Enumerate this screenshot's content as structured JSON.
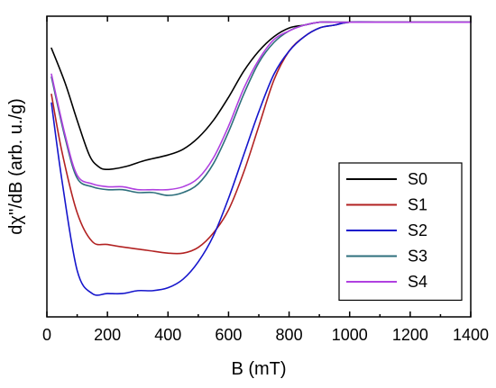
{
  "chart_data": {
    "type": "line",
    "title": "",
    "xlabel": "B (mT)",
    "ylabel": "dχ''/dB (arb. u./g)",
    "xlim": [
      0,
      1400
    ],
    "ylim": [
      0,
      1
    ],
    "xticks": [
      0,
      200,
      400,
      600,
      800,
      1000,
      1200,
      1400
    ],
    "yticks": [],
    "grid": false,
    "legend_position": "bottom-right",
    "series": [
      {
        "name": "S0",
        "color": "#000000",
        "x": [
          15,
          60,
          100,
          140,
          170,
          200,
          260,
          320,
          400,
          450,
          500,
          550,
          600,
          650,
          700,
          750,
          800,
          850,
          900,
          950,
          1000,
          1100,
          1200,
          1300,
          1400
        ],
        "y": [
          0.91,
          0.79,
          0.66,
          0.54,
          0.5,
          0.49,
          0.5,
          0.52,
          0.54,
          0.56,
          0.6,
          0.66,
          0.74,
          0.83,
          0.9,
          0.95,
          0.98,
          0.99,
          1.0,
          1.0,
          1.0,
          1.0,
          1.0,
          1.0,
          1.0
        ]
      },
      {
        "name": "S1",
        "color": "#b22222",
        "x": [
          15,
          50,
          100,
          150,
          200,
          260,
          330,
          400,
          450,
          500,
          550,
          600,
          650,
          700,
          750,
          800,
          850,
          900,
          950,
          1000,
          1100,
          1200,
          1300,
          1400
        ],
        "y": [
          0.75,
          0.55,
          0.34,
          0.24,
          0.23,
          0.22,
          0.21,
          0.2,
          0.2,
          0.22,
          0.27,
          0.35,
          0.48,
          0.64,
          0.8,
          0.9,
          0.95,
          0.98,
          0.99,
          1.0,
          1.0,
          1.0,
          1.0,
          1.0
        ]
      },
      {
        "name": "S2",
        "color": "#1515cc",
        "x": [
          15,
          50,
          100,
          150,
          200,
          250,
          300,
          350,
          400,
          450,
          500,
          550,
          600,
          650,
          700,
          750,
          800,
          850,
          900,
          950,
          1000,
          1100,
          1200,
          1300,
          1400
        ],
        "y": [
          0.72,
          0.45,
          0.14,
          0.06,
          0.06,
          0.06,
          0.07,
          0.07,
          0.08,
          0.11,
          0.17,
          0.26,
          0.39,
          0.54,
          0.69,
          0.82,
          0.9,
          0.95,
          0.98,
          0.99,
          1.0,
          1.0,
          1.0,
          1.0,
          1.0
        ]
      },
      {
        "name": "S3",
        "color": "#2e6f7c",
        "x": [
          15,
          60,
          100,
          150,
          200,
          250,
          300,
          350,
          400,
          450,
          500,
          550,
          600,
          650,
          700,
          750,
          800,
          850,
          900,
          950,
          1000,
          1100,
          1200,
          1300,
          1400
        ],
        "y": [
          0.81,
          0.6,
          0.46,
          0.43,
          0.42,
          0.42,
          0.41,
          0.41,
          0.4,
          0.41,
          0.44,
          0.51,
          0.62,
          0.75,
          0.86,
          0.93,
          0.97,
          0.99,
          1.0,
          1.0,
          1.0,
          1.0,
          1.0,
          1.0,
          1.0
        ]
      },
      {
        "name": "S4",
        "color": "#b040e0",
        "x": [
          15,
          60,
          100,
          150,
          200,
          250,
          300,
          350,
          400,
          450,
          500,
          550,
          600,
          650,
          700,
          750,
          800,
          850,
          900,
          950,
          1000,
          1100,
          1200,
          1300,
          1400
        ],
        "y": [
          0.82,
          0.61,
          0.47,
          0.44,
          0.43,
          0.43,
          0.42,
          0.42,
          0.42,
          0.43,
          0.46,
          0.53,
          0.64,
          0.77,
          0.87,
          0.94,
          0.97,
          0.99,
          1.0,
          1.0,
          1.0,
          1.0,
          1.0,
          1.0,
          1.0
        ]
      }
    ]
  }
}
